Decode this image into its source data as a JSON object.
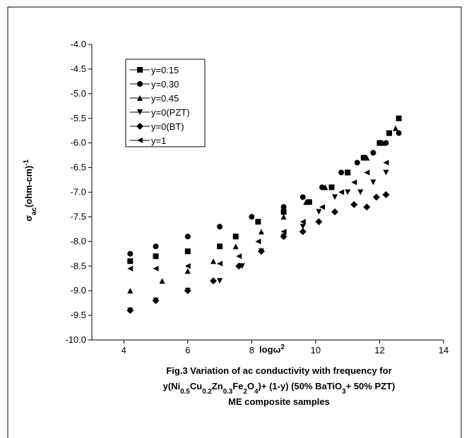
{
  "chart_data": {
    "type": "scatter",
    "xlabel": [
      {
        "text": "log"
      },
      {
        "text": "ω"
      },
      {
        "text": "2",
        "sup": true
      }
    ],
    "ylabel": [
      {
        "text": "σ"
      },
      {
        "text": "ac",
        "sub": true
      },
      {
        "text": "(ohm-cm)"
      },
      {
        "text": "-1",
        "sup": true
      }
    ],
    "caption": [
      [
        {
          "text": "Fig.3 Variation of ac conductivity with frequency for"
        }
      ],
      [
        {
          "text": "y(Ni"
        },
        {
          "text": "0.5",
          "sub": true
        },
        {
          "text": "Cu"
        },
        {
          "text": "0.2",
          "sub": true
        },
        {
          "text": "Zn"
        },
        {
          "text": "0.3",
          "sub": true
        },
        {
          "text": "Fe"
        },
        {
          "text": "2",
          "sub": true
        },
        {
          "text": "O"
        },
        {
          "text": "4",
          "sub": true
        },
        {
          "text": ")+ (1-y) (50% BaTiO"
        },
        {
          "text": "3",
          "sub": true
        },
        {
          "text": "+ 50% PZT)"
        }
      ],
      [
        {
          "text": "ME composite samples"
        }
      ]
    ],
    "xlim": [
      3,
      14
    ],
    "xticks": [
      4,
      6,
      8,
      10,
      12,
      14
    ],
    "ylim": [
      -10,
      -4
    ],
    "yticks": [
      {
        "value": -4,
        "label": "-4.0"
      },
      -4.5,
      {
        "value": -5,
        "label": "-5.0"
      },
      -5.5,
      {
        "value": -6,
        "label": "-6.0"
      },
      -6.5,
      {
        "value": -7,
        "label": "-7.0"
      },
      -7.5,
      {
        "value": -8,
        "label": "-8.0"
      },
      -8.5,
      {
        "value": -9,
        "label": "-9.0"
      },
      -9.5,
      {
        "value": -10,
        "label": "-10.0"
      }
    ],
    "legend": "upper left",
    "series": [
      {
        "name": "y=0.15",
        "color": "#000000",
        "marker": "square",
        "x": [
          4.2,
          5,
          6,
          7,
          7.5,
          8.2,
          9,
          9.8,
          10.5,
          11,
          11.5,
          12,
          12.3,
          12.6
        ],
        "values": [
          -8.4,
          -8.3,
          -8.2,
          -8.1,
          -7.9,
          -7.6,
          -7.4,
          -7.2,
          -6.9,
          -6.6,
          -6.3,
          -6.0,
          -5.8,
          -5.5
        ]
      },
      {
        "name": "y=0.30",
        "color": "#000000",
        "marker": "circle",
        "x": [
          4.2,
          5,
          6,
          7,
          8,
          9,
          9.6,
          10.2,
          10.8,
          11.3,
          11.8,
          12.2,
          12.6
        ],
        "values": [
          -8.25,
          -8.1,
          -7.9,
          -7.7,
          -7.5,
          -7.3,
          -7.1,
          -6.9,
          -6.6,
          -6.4,
          -6.2,
          -6.0,
          -5.8
        ]
      },
      {
        "name": "y=0.45",
        "color": "#000000",
        "marker": "triangle-up",
        "x": [
          4.2,
          5.2,
          6,
          6.8,
          7.5,
          8.3,
          9,
          9.7,
          10.3,
          11,
          11.6,
          12.1,
          12.5
        ],
        "values": [
          -9.0,
          -8.8,
          -8.6,
          -8.4,
          -8.1,
          -7.8,
          -7.5,
          -7.2,
          -6.9,
          -6.6,
          -6.3,
          -6.0,
          -5.7
        ]
      },
      {
        "name": "y=0(PZT)",
        "color": "#000000",
        "marker": "triangle-down",
        "x": [
          4.2,
          5,
          6,
          7,
          7.7,
          8.3,
          9,
          9.6,
          10.1,
          10.6,
          11,
          11.4,
          11.8,
          12.2
        ],
        "values": [
          -9.4,
          -9.2,
          -9.0,
          -8.8,
          -8.5,
          -8.2,
          -7.9,
          -7.7,
          -7.4,
          -7.1,
          -7.0,
          -7.0,
          -6.8,
          -6.6
        ]
      },
      {
        "name": "y=0(BT)",
        "color": "#000000",
        "marker": "diamond",
        "x": [
          4.2,
          5,
          6,
          6.8,
          7.6,
          8.3,
          9,
          9.6,
          10.1,
          10.6,
          11.2,
          11.6,
          11.9,
          12.2
        ],
        "values": [
          -9.4,
          -9.2,
          -9.0,
          -8.8,
          -8.5,
          -8.2,
          -7.9,
          -7.8,
          -7.6,
          -7.4,
          -7.25,
          -7.3,
          -7.1,
          -7.05
        ]
      },
      {
        "name": "y=1",
        "color": "#000000",
        "marker": "triangle-left",
        "x": [
          4.2,
          5,
          6,
          7,
          7.6,
          8.2,
          9,
          9.6,
          10.2,
          10.8,
          11.2,
          11.6,
          12.2
        ],
        "values": [
          -8.55,
          -8.55,
          -8.5,
          -8.45,
          -8.3,
          -8.0,
          -7.8,
          -7.6,
          -7.3,
          -7.0,
          -6.8,
          -6.6,
          -6.4
        ]
      }
    ]
  }
}
